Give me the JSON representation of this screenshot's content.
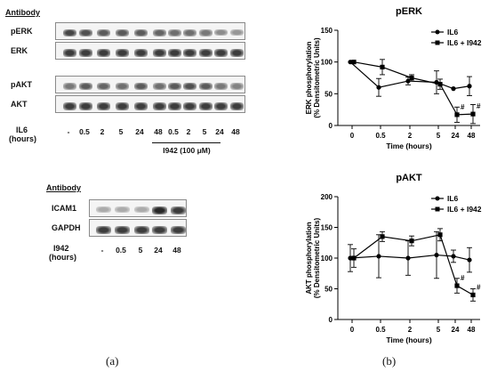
{
  "panel_a": {
    "blot1": {
      "header": "Antibody",
      "rows": [
        "pERK",
        "ERK",
        "pAKT",
        "AKT"
      ],
      "row_label": "IL6",
      "row_label_unit": "(hours)",
      "lanes": [
        "-",
        "0.5",
        "2",
        "5",
        "24",
        "48",
        "0.5",
        "2",
        "5",
        "24",
        "48"
      ],
      "treatment_label": "I942 (100 μM)"
    },
    "blot2": {
      "header": "Antibody",
      "rows": [
        "ICAM1",
        "GAPDH"
      ],
      "row_label": "I942",
      "row_label_unit": "(hours)",
      "lanes": [
        "-",
        "0.5",
        "5",
        "24",
        "48"
      ]
    },
    "caption": "(a)"
  },
  "panel_b": {
    "caption": "(b)"
  },
  "chart_data": [
    {
      "type": "line",
      "title": "pERK",
      "xlabel": "Time (hours)",
      "ylabel": "ERK phosphorylation (% Densitometric Units)",
      "categories": [
        "0",
        "0.5",
        "2",
        "5",
        "24",
        "48"
      ],
      "ylim": [
        0,
        150
      ],
      "yticks": [
        0,
        50,
        100,
        150
      ],
      "legend_position": "top-right",
      "series": [
        {
          "name": "IL6",
          "marker": "circle",
          "values": [
            100,
            60,
            70,
            68,
            58,
            62
          ],
          "errors": [
            0,
            14,
            6,
            18,
            0,
            15
          ]
        },
        {
          "name": "IL6 + I942",
          "marker": "square",
          "values": [
            100,
            92,
            75,
            65,
            17,
            18
          ],
          "errors": [
            0,
            12,
            5,
            8,
            12,
            15
          ]
        }
      ],
      "annotations": [
        {
          "category": "24",
          "text": "#"
        },
        {
          "category": "48",
          "text": "#"
        }
      ]
    },
    {
      "type": "line",
      "title": "pAKT",
      "xlabel": "Time (hours)",
      "ylabel": "AKT phosphorylation (% Densitometric Units)",
      "categories": [
        "0",
        "0.5",
        "2",
        "5",
        "24",
        "48"
      ],
      "ylim": [
        0,
        200
      ],
      "yticks": [
        0,
        50,
        100,
        150,
        200
      ],
      "legend_position": "top-right",
      "series": [
        {
          "name": "IL6",
          "marker": "circle",
          "values": [
            100,
            103,
            100,
            105,
            103,
            97
          ],
          "errors": [
            22,
            35,
            28,
            38,
            10,
            20
          ]
        },
        {
          "name": "IL6 + I942",
          "marker": "square",
          "values": [
            100,
            135,
            128,
            138,
            55,
            40
          ],
          "errors": [
            15,
            8,
            8,
            10,
            12,
            10
          ]
        }
      ],
      "annotations": [
        {
          "category": "24",
          "text": "#"
        },
        {
          "category": "48",
          "text": "#"
        }
      ]
    }
  ]
}
